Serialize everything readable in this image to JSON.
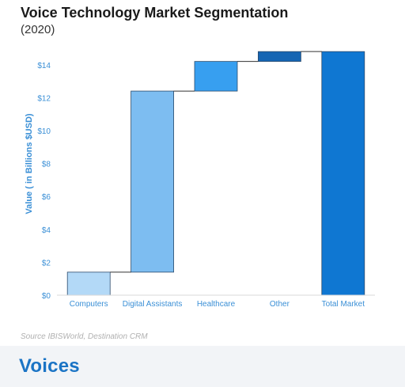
{
  "title": "Voice Technology Market Segmentation",
  "subtitle": "(2020)",
  "source": "Source  IBISWorld, Destination CRM",
  "brand": "Voices",
  "chart_data": {
    "type": "bar",
    "subtype": "waterfall",
    "title": "Voice Technology Market Segmentation",
    "subtitle": "(2020)",
    "xlabel": "",
    "ylabel": "Value ( in Billions $USD)",
    "ylim": [
      0,
      15
    ],
    "yticks": [
      0,
      2,
      4,
      6,
      8,
      10,
      12,
      14
    ],
    "ytick_labels": [
      "$0",
      "$2",
      "$4",
      "$6",
      "$8",
      "$10",
      "$12",
      "$14"
    ],
    "categories": [
      "Computers",
      "Digital Assistants",
      "Healthcare",
      "Other",
      "Total Market"
    ],
    "values": [
      1.4,
      11.0,
      1.8,
      0.6,
      14.8
    ],
    "bases": [
      0,
      1.4,
      12.4,
      14.2,
      0
    ],
    "is_total": [
      false,
      false,
      false,
      false,
      true
    ],
    "colors": [
      "#b3d9f7",
      "#7dbdf1",
      "#379ff0",
      "#1565b3",
      "#0f77d2"
    ],
    "connector_color": "#333333",
    "grid": false,
    "legend": "none"
  }
}
